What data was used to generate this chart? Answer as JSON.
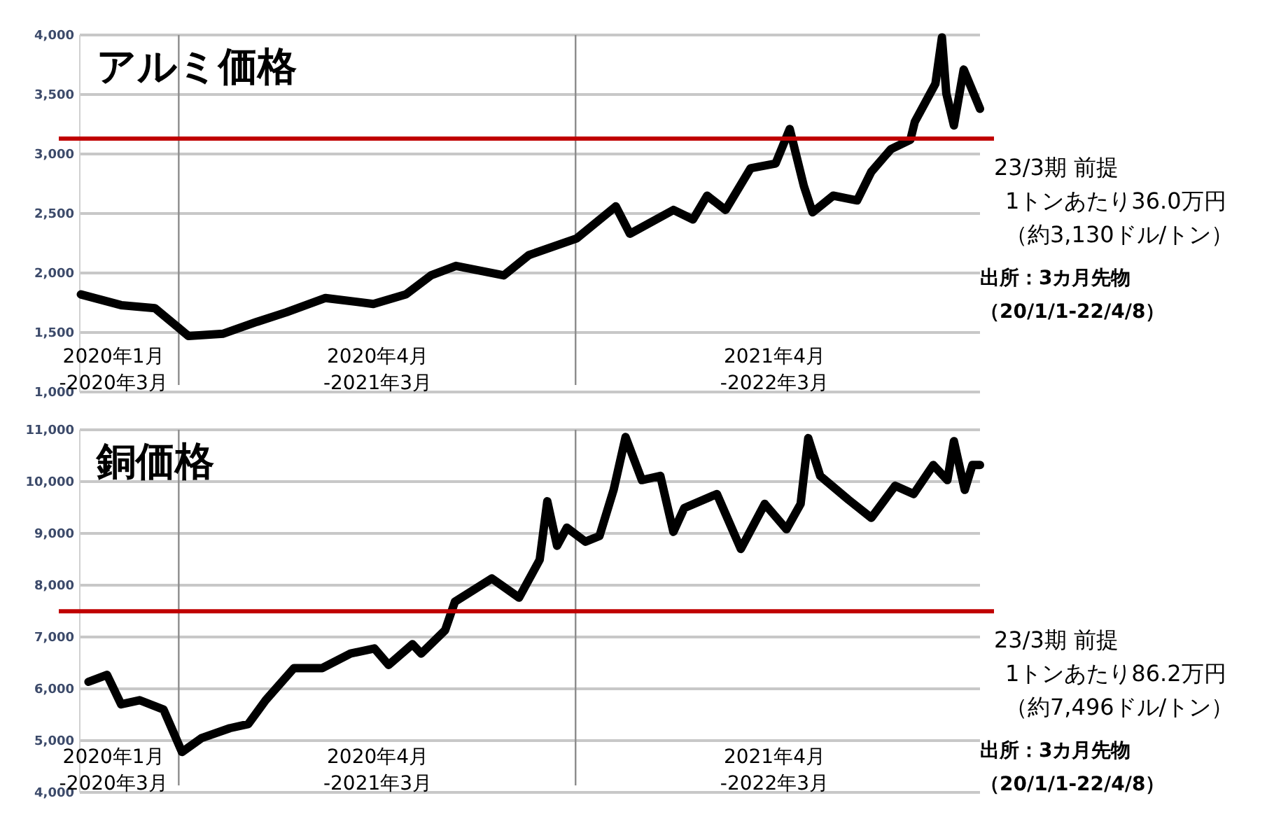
{
  "chart_data": [
    {
      "type": "line",
      "title": "アルミ価格",
      "grid": "y",
      "xlim": [
        "2020-01-01",
        "2022-04-08"
      ],
      "ylim": [
        1000,
        4000
      ],
      "yticks": [
        {
          "value": 1000,
          "label": "1,000"
        },
        {
          "value": 1500,
          "label": "1,500"
        },
        {
          "value": 2000,
          "label": "2,000"
        },
        {
          "value": 2500,
          "label": "2,500"
        },
        {
          "value": 3000,
          "label": "3,000"
        },
        {
          "value": 3500,
          "label": "3,500"
        },
        {
          "value": 4000,
          "label": "4,000"
        }
      ],
      "series": [
        {
          "color": "#000000",
          "x": [
            "2020-01-02",
            "2020-02-08",
            "2020-03-10",
            "2020-04-10",
            "2020-05-12",
            "2020-06-12",
            "2020-07-09",
            "2020-08-14",
            "2020-09-27",
            "2020-10-27",
            "2020-11-19",
            "2020-12-12",
            "2021-01-25",
            "2021-02-17",
            "2021-04-02",
            "2021-05-08",
            "2021-05-21",
            "2021-06-30",
            "2021-07-18",
            "2021-07-31",
            "2021-08-17",
            "2021-09-09",
            "2021-10-02",
            "2021-10-15",
            "2021-10-28",
            "2021-11-05",
            "2021-11-24",
            "2021-12-16",
            "2021-12-29",
            "2022-01-16",
            "2022-02-03",
            "2022-02-07",
            "2022-02-26",
            "2022-03-04",
            "2022-03-08",
            "2022-03-15",
            "2022-03-24",
            "2022-04-08"
          ],
          "values": [
            1820,
            1730,
            1705,
            1470,
            1490,
            1590,
            1670,
            1790,
            1740,
            1820,
            1980,
            2060,
            1980,
            2150,
            2290,
            2560,
            2330,
            2530,
            2450,
            2650,
            2530,
            2880,
            2920,
            3210,
            2730,
            2510,
            2650,
            2610,
            2850,
            3040,
            3120,
            3270,
            3590,
            3980,
            3510,
            3240,
            3710,
            3380
          ]
        }
      ],
      "ref_lines": [
        {
          "axis": "y",
          "value": 3130,
          "label": "23/3期 前提",
          "color": "#c00000"
        },
        {
          "axis": "x",
          "value": "2020-04-01",
          "color": "#8c8c8c"
        },
        {
          "axis": "x",
          "value": "2021-04-01",
          "color": "#8c8c8c"
        }
      ],
      "xticks": [
        {
          "value": "2020-02-01",
          "label": "2020年1月\n-2020年3月"
        },
        {
          "value": "2020-10-01",
          "label": "2020年4月\n-2021年3月"
        },
        {
          "value": "2021-10-01",
          "label": "2021年4月\n-2022年3月"
        }
      ],
      "annotations": [
        "1トンあたり36.0万円",
        "（約3,130ドル/トン）",
        "出所：3カ月先物",
        "（20/1/1-22/4/8）"
      ]
    },
    {
      "type": "line",
      "title": "銅価格",
      "grid": "y",
      "xlim": [
        "2020-01-01",
        "2022-04-08"
      ],
      "ylim": [
        4000,
        11000
      ],
      "yticks": [
        {
          "value": 4000,
          "label": "4,000"
        },
        {
          "value": 5000,
          "label": "5,000"
        },
        {
          "value": 6000,
          "label": "6,000"
        },
        {
          "value": 7000,
          "label": "7,000"
        },
        {
          "value": 8000,
          "label": "8,000"
        },
        {
          "value": 9000,
          "label": "9,000"
        },
        {
          "value": 10000,
          "label": "10,000"
        },
        {
          "value": 11000,
          "label": "11,000"
        }
      ],
      "series": [
        {
          "color": "#000000",
          "x": [
            "2020-01-09",
            "2020-01-26",
            "2020-02-08",
            "2020-02-25",
            "2020-03-18",
            "2020-04-04",
            "2020-04-22",
            "2020-05-18",
            "2020-06-04",
            "2020-06-20",
            "2020-07-16",
            "2020-08-11",
            "2020-09-06",
            "2020-09-28",
            "2020-10-11",
            "2020-11-02",
            "2020-11-10",
            "2020-12-02",
            "2020-12-11",
            "2021-01-14",
            "2021-02-08",
            "2021-02-27",
            "2021-03-06",
            "2021-03-15",
            "2021-03-24",
            "2021-04-10",
            "2021-04-23",
            "2021-05-06",
            "2021-05-17",
            "2021-06-01",
            "2021-06-18",
            "2021-06-30",
            "2021-07-10",
            "2021-08-09",
            "2021-08-31",
            "2021-09-22",
            "2021-10-12",
            "2021-10-25",
            "2021-11-01",
            "2021-11-12",
            "2021-12-08",
            "2021-12-29",
            "2022-01-20",
            "2022-02-06",
            "2022-02-24",
            "2022-03-09",
            "2022-03-15",
            "2022-03-25",
            "2022-04-01",
            "2022-04-08"
          ],
          "values": [
            6135,
            6270,
            5700,
            5780,
            5600,
            4780,
            5050,
            5240,
            5320,
            5780,
            6400,
            6400,
            6680,
            6780,
            6460,
            6860,
            6680,
            7130,
            7680,
            8130,
            7760,
            8490,
            9620,
            8760,
            9110,
            8840,
            8950,
            9840,
            10860,
            10030,
            10110,
            9030,
            9490,
            9760,
            8700,
            9570,
            9080,
            9570,
            10840,
            10110,
            9650,
            9300,
            9920,
            9760,
            10320,
            10030,
            10780,
            9840,
            10320,
            10320
          ]
        }
      ],
      "ref_lines": [
        {
          "axis": "y",
          "value": 7496,
          "label": "23/3期 前提",
          "color": "#c00000"
        },
        {
          "axis": "x",
          "value": "2020-04-01",
          "color": "#8c8c8c"
        },
        {
          "axis": "x",
          "value": "2021-04-01",
          "color": "#8c8c8c"
        }
      ],
      "xticks": [
        {
          "value": "2020-02-01",
          "label": "2020年1月\n-2020年3月"
        },
        {
          "value": "2020-10-01",
          "label": "2020年4月\n-2021年3月"
        },
        {
          "value": "2021-10-01",
          "label": "2021年4月\n-2022年3月"
        }
      ],
      "annotations": [
        "1トンあたり86.2万円",
        "（約7,496ドル/トン）",
        "出所：3カ月先物",
        "（20/1/1-22/4/8）"
      ]
    }
  ]
}
